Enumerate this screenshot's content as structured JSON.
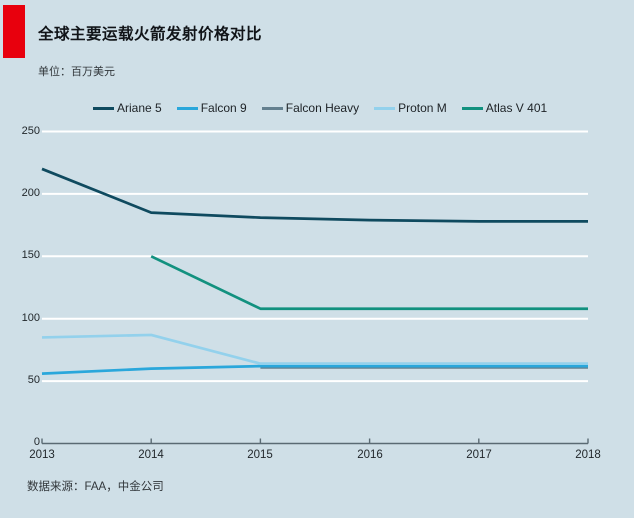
{
  "header": {
    "title": "全球主要运载火箭发射价格对比",
    "unit_label": "单位：百万美元"
  },
  "footer": {
    "source": "数据来源：FAA，中金公司"
  },
  "colors": {
    "background": "#cfdfe7",
    "accent_red": "#e8000d",
    "gridline": "#ffffff",
    "axis": "#5a6a73",
    "text": "#1d2226"
  },
  "chart_data": {
    "type": "line",
    "title": "全球主要运载火箭发射价格对比",
    "unit": "百万美元",
    "x": [
      2013,
      2014,
      2015,
      2016,
      2017,
      2018
    ],
    "xlim": [
      2013,
      2018
    ],
    "ylim": [
      0,
      250
    ],
    "yticks": [
      0,
      50,
      100,
      150,
      200,
      250
    ],
    "grid": "horizontal-only",
    "legend_position": "top",
    "series": [
      {
        "name": "Ariane 5",
        "color": "#0f4a5f",
        "values": [
          220,
          185,
          181,
          179,
          178,
          178
        ]
      },
      {
        "name": "Falcon 9",
        "color": "#2aa7db",
        "values": [
          56,
          60,
          62,
          62,
          62,
          62
        ]
      },
      {
        "name": "Falcon Heavy",
        "color": "#64808f",
        "values": [
          null,
          null,
          61,
          61,
          61,
          61
        ]
      },
      {
        "name": "Proton M",
        "color": "#93d1ec",
        "values": [
          85,
          87,
          64,
          64,
          64,
          64
        ]
      },
      {
        "name": "Atlas V 401",
        "color": "#12917f",
        "values": [
          null,
          150,
          108,
          108,
          108,
          108
        ]
      }
    ]
  }
}
